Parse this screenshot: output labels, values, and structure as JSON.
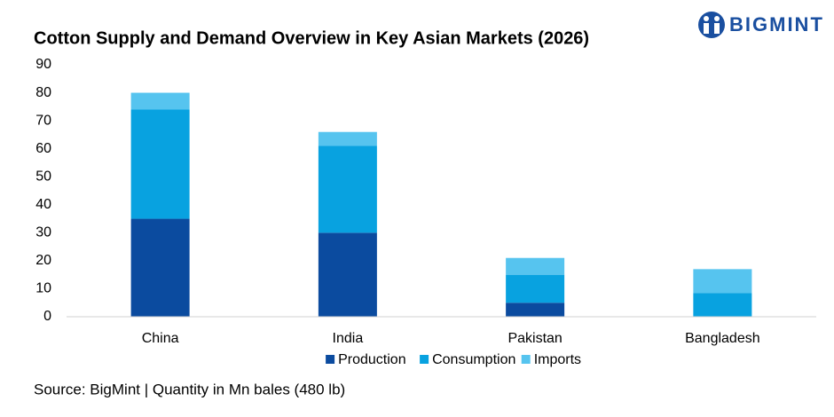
{
  "chart_data": {
    "type": "stacked_bar",
    "title": "Cotton Supply and Demand Overview in Key Asian Markets (2026)",
    "brand": "BIGMINT",
    "source": "Source: BigMint | Quantity in Mn bales (480 lb)",
    "categories": [
      "China",
      "India",
      "Pakistan",
      "Bangladesh"
    ],
    "series": [
      {
        "name": "Production",
        "color": "#0b4b9f",
        "values": [
          35,
          30,
          5,
          0
        ]
      },
      {
        "name": "Consumption",
        "color": "#08a2e0",
        "values": [
          39,
          31,
          10,
          8.5
        ]
      },
      {
        "name": "Imports",
        "color": "#56c4ef",
        "values": [
          6,
          5,
          6,
          8.5
        ]
      }
    ],
    "ylim": [
      0,
      90
    ],
    "yticks": [
      0,
      10,
      20,
      30,
      40,
      50,
      60,
      70,
      80,
      90
    ],
    "grid": false
  }
}
